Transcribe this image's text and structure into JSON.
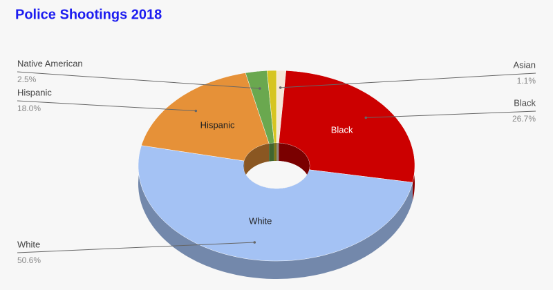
{
  "chart_data": {
    "type": "donut3d",
    "title": "Police Shootings 2018",
    "categories": [
      "Asian",
      "Black",
      "White",
      "Hispanic",
      "Native American",
      null
    ],
    "values": [
      1.1,
      26.7,
      50.6,
      18.0,
      2.5,
      1.1
    ],
    "value_labels": [
      "1.1%",
      "26.7%",
      "50.6%",
      "18.0%",
      "2.5%",
      null
    ],
    "colors": [
      "#f4e7d7",
      "#cc0000",
      "#a4c2f4",
      "#e69138",
      "#6aa84f",
      "#d6c521"
    ]
  }
}
